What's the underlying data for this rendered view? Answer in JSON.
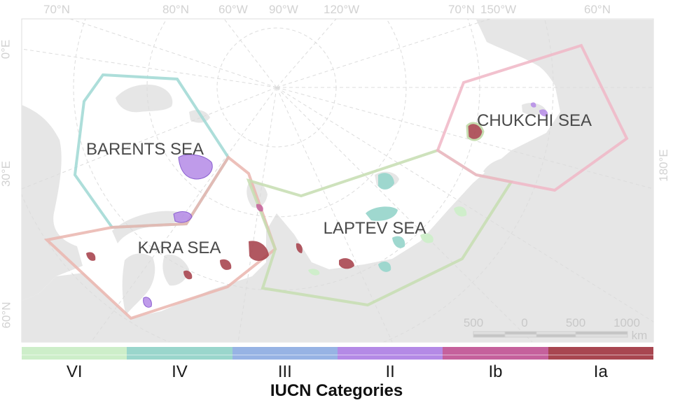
{
  "graticule_labels": {
    "top": [
      "70°N",
      "80°N",
      "60°W",
      "90°W",
      "120°W",
      "70°N",
      "150°W",
      "60°N"
    ],
    "left": [
      "0°E",
      "30°E",
      "60°N"
    ],
    "right": [
      "180°E"
    ]
  },
  "seas": [
    "BARENTS SEA",
    "KARA SEA",
    "LAPTEV SEA",
    "CHUKCHI SEA"
  ],
  "scale_bar": {
    "labels": [
      "500",
      "0",
      "500",
      "1000"
    ],
    "unit": "km"
  },
  "legend": {
    "title": "IUCN Categories",
    "categories": [
      {
        "label": "VI",
        "color": "#cdeec9"
      },
      {
        "label": "IV",
        "color": "#9ad6cc"
      },
      {
        "label": "III",
        "color": "#97b3e4"
      },
      {
        "label": "II",
        "color": "#b48ae6"
      },
      {
        "label": "Ib",
        "color": "#c5619c"
      },
      {
        "label": "Ia",
        "color": "#a84650"
      }
    ]
  },
  "colors": {
    "land": "#e6e6e6",
    "graticule": "#dcdcdc",
    "barents_outline": "#9fd8d4",
    "kara_outline": "#eab5ae",
    "laptev_outline": "#c6ddb0",
    "chukchi_outline": "#f0b6c6"
  }
}
